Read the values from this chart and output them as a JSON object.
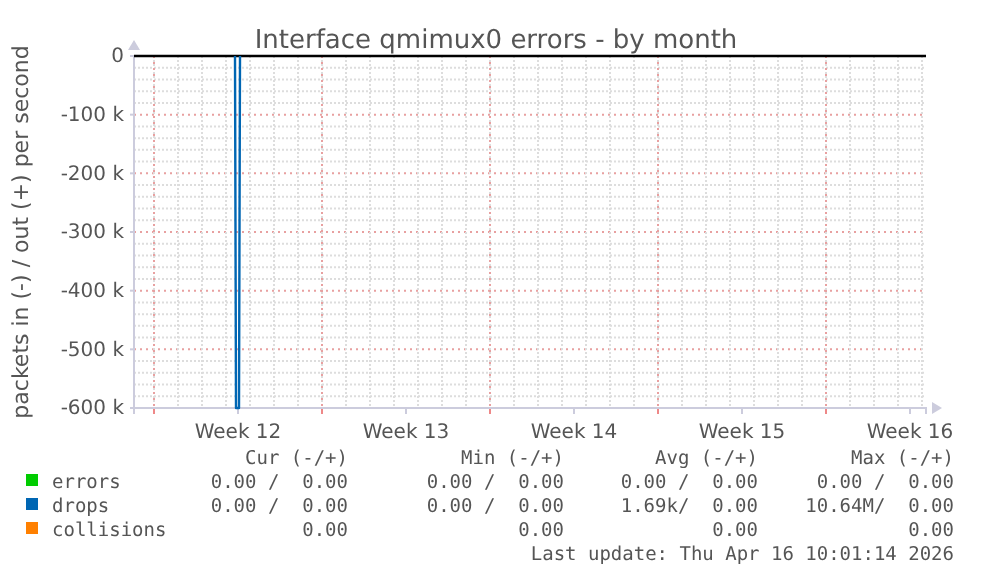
{
  "chart_data": {
    "type": "line",
    "title": "Interface qmimux0 errors - by month",
    "ylabel": "packets in (-) / out (+) per second",
    "xlim": [
      "2026-03-15T04:00",
      "2026-04-17T04:00"
    ],
    "ylim": [
      -600000,
      0
    ],
    "xticks": [
      {
        "value": "2026-03-19T12:00",
        "label": "Week 12"
      },
      {
        "value": "2026-03-26T12:00",
        "label": "Week 13"
      },
      {
        "value": "2026-04-02T12:00",
        "label": "Week 14"
      },
      {
        "value": "2026-04-09T12:00",
        "label": "Week 15"
      },
      {
        "value": "2026-04-16T12:00",
        "label": "Week 16"
      }
    ],
    "yticks": [
      0,
      {
        "value": -100000,
        "label": "-100 k"
      },
      {
        "value": -200000,
        "label": "-200 k"
      },
      {
        "value": -300000,
        "label": "-300 k"
      },
      {
        "value": -400000,
        "label": "-400 k"
      },
      {
        "value": -500000,
        "label": "-500 k"
      },
      {
        "value": -600000,
        "label": "-600 k"
      }
    ],
    "grid": true,
    "legend": "bottom",
    "series": [
      {
        "name": "errors",
        "color": "#00cc00",
        "values": [
          null
        ]
      },
      {
        "name": "drops",
        "color": "#0066b3",
        "x": [
          "2026-03-19T09:00",
          "2026-03-19T10:00",
          "2026-03-19T13:00",
          "2026-03-19T14:00"
        ],
        "values": [
          0,
          -600000,
          -600000,
          0
        ]
      },
      {
        "name": "collisions",
        "color": "#ff8000",
        "values": [
          null
        ]
      }
    ],
    "ref_lines": [
      {
        "axis": "y",
        "value": 0,
        "color": "#000000"
      }
    ],
    "annotations": [
      "Cur (-/+)",
      "Min (-/+)",
      "Avg (-/+)",
      "Max (-/+)",
      "0.00 /  0.00",
      "0.00 /  0.00",
      "0.00 /  0.00",
      "0.00 /  0.00",
      "0.00 /  0.00",
      "0.00 /  0.00",
      "1.69k/  0.00",
      "10.64M/  0.00",
      "0.00",
      "0.00",
      "0.00",
      "0.00",
      "Last update: Thu Apr 16 10:01:14 2026"
    ]
  }
}
